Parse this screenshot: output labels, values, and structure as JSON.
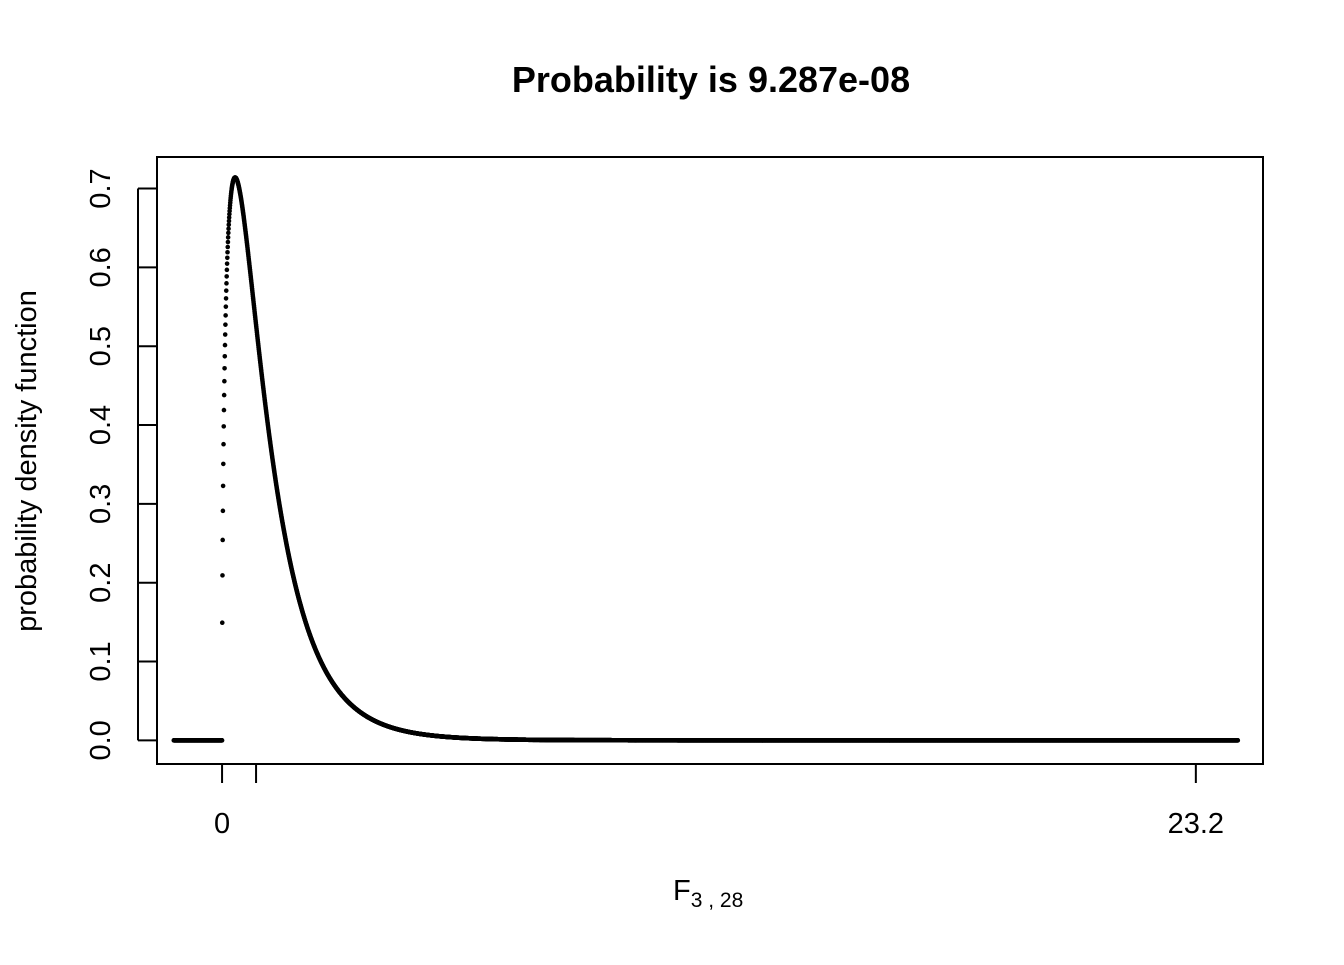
{
  "chart_data": {
    "type": "scatter",
    "title": "Probability is 9.287e-08",
    "xlabel_main": "F",
    "xlabel_sub": "3 , 28",
    "ylabel": "probability  density  function",
    "distribution": "F",
    "df1": 3,
    "df2": 28,
    "x_range": [
      -1.15,
      24.2
    ],
    "xlim": [
      -1.55,
      24.8
    ],
    "ylim": [
      -0.03,
      0.74
    ],
    "x_ticks": [
      {
        "value": 0,
        "label": "0"
      },
      {
        "value": 0.81,
        "label": ""
      },
      {
        "value": 23.2,
        "label": "23.2"
      }
    ],
    "y_ticks": [
      {
        "value": 0.0,
        "label": "0.0"
      },
      {
        "value": 0.1,
        "label": "0.1"
      },
      {
        "value": 0.2,
        "label": "0.2"
      },
      {
        "value": 0.3,
        "label": "0.3"
      },
      {
        "value": 0.4,
        "label": "0.4"
      },
      {
        "value": 0.5,
        "label": "0.5"
      },
      {
        "value": 0.6,
        "label": "0.6"
      },
      {
        "value": 0.7,
        "label": "0.7"
      }
    ],
    "grid": false,
    "color": "#000000"
  }
}
